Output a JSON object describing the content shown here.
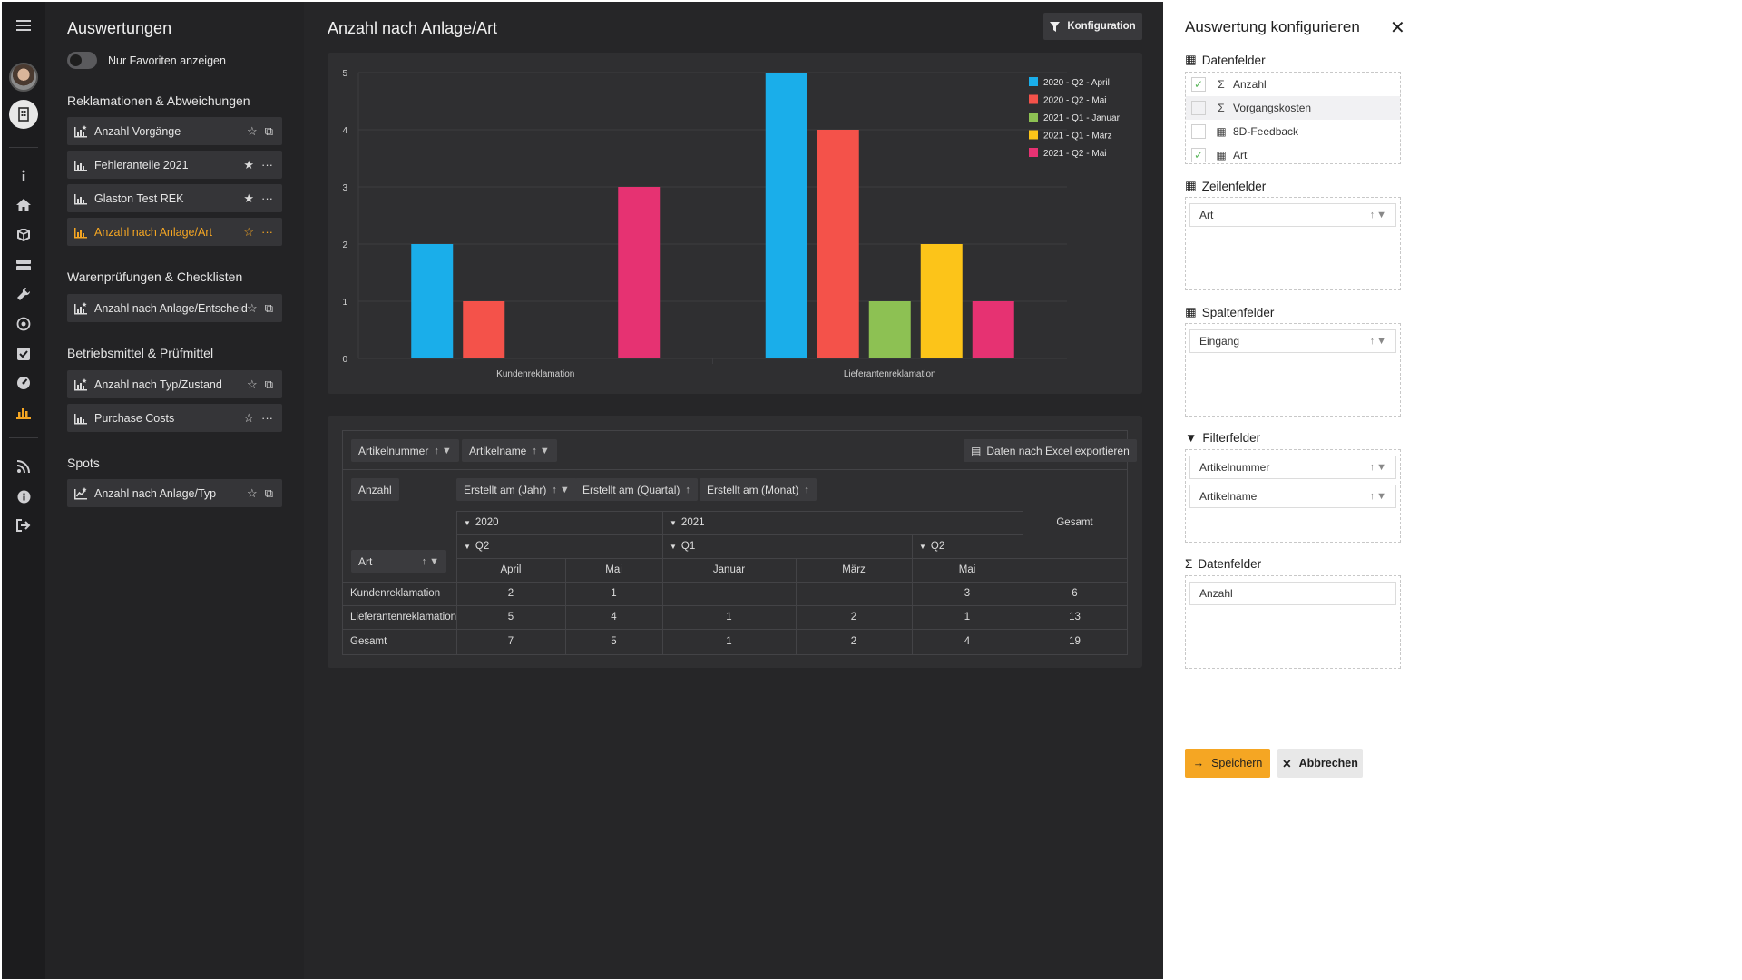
{
  "nav": {
    "title": "Auswertungen",
    "favorites_toggle_label": "Nur Favoriten anzeigen",
    "groups": [
      {
        "title": "Reklamationen & Abweichungen",
        "items": [
          {
            "label": "Anzahl Vorgänge",
            "star": "☆",
            "action": "copy"
          },
          {
            "label": "Fehleranteile 2021",
            "star": "★",
            "action": "more"
          },
          {
            "label": "Glaston Test REK",
            "star": "★",
            "action": "more"
          },
          {
            "label": "Anzahl nach Anlage/Art",
            "star": "☆",
            "action": "more"
          }
        ]
      },
      {
        "title": "Warenprüfungen & Checklisten",
        "items": [
          {
            "label": "Anzahl nach Anlage/Entscheid",
            "star": "☆",
            "action": "copy"
          }
        ]
      },
      {
        "title": "Betriebsmittel & Prüfmittel",
        "items": [
          {
            "label": "Anzahl nach Typ/Zustand",
            "star": "☆",
            "action": "copy"
          },
          {
            "label": "Purchase Costs",
            "star": "☆",
            "action": "more"
          }
        ]
      },
      {
        "title": "Spots",
        "items": [
          {
            "label": "Anzahl nach Anlage/Typ",
            "star": "☆",
            "action": "copy"
          }
        ]
      }
    ]
  },
  "main": {
    "title": "Anzahl nach Anlage/Art",
    "config_button": "Konfiguration"
  },
  "chart_data": {
    "type": "bar",
    "categories": [
      "Kundenreklamation",
      "Lieferantenreklamation"
    ],
    "series": [
      {
        "name": "2020 - Q2 - April",
        "color": "#1aaeea",
        "values": [
          2,
          5
        ]
      },
      {
        "name": "2020 - Q2 - Mai",
        "color": "#f4524a",
        "values": [
          1,
          4
        ]
      },
      {
        "name": "2021 - Q1 - Januar",
        "color": "#8dc153",
        "values": [
          null,
          1
        ]
      },
      {
        "name": "2021 - Q1 - März",
        "color": "#fcc419",
        "values": [
          null,
          2
        ]
      },
      {
        "name": "2021 - Q2 - Mai",
        "color": "#e63272",
        "values": [
          3,
          1
        ]
      }
    ],
    "yticks": [
      "0",
      "1",
      "2",
      "3",
      "4",
      "5"
    ],
    "ylim": [
      0,
      5
    ],
    "legend": "top-right",
    "grid": true
  },
  "pivot": {
    "filter_chips": [
      "Artikelnummer",
      "Artikelname"
    ],
    "export_label": "Daten nach Excel exportieren",
    "data_chip": "Anzahl",
    "column_chips": [
      "Erstellt am (Jahr)",
      "Erstellt am (Quartal)",
      "Erstellt am (Monat)"
    ],
    "row_chip": "Art",
    "years": [
      "2020",
      "2021"
    ],
    "quarters": [
      "Q2",
      "Q1",
      "Q2"
    ],
    "months": [
      "April",
      "Mai",
      "Januar",
      "März",
      "Mai"
    ],
    "total_label": "Gesamt",
    "rows": [
      {
        "label": "Kundenreklamation",
        "values": [
          "2",
          "1",
          "",
          "",
          "3"
        ],
        "total": "6"
      },
      {
        "label": "Lieferantenreklamation",
        "values": [
          "5",
          "4",
          "1",
          "2",
          "1"
        ],
        "total": "13"
      },
      {
        "label": "Gesamt",
        "values": [
          "7",
          "5",
          "1",
          "2",
          "4"
        ],
        "total": "19"
      }
    ]
  },
  "panel": {
    "title": "Auswertung konfigurieren",
    "datafields_title": "Datenfelder",
    "datafields": [
      {
        "label": "Anzahl",
        "checked": true,
        "symbol": "Σ"
      },
      {
        "label": "Vorgangskosten",
        "checked": false,
        "symbol": "Σ"
      },
      {
        "label": "8D-Feedback",
        "checked": false,
        "symbol": "▦"
      },
      {
        "label": "Art",
        "checked": true,
        "symbol": "▦"
      }
    ],
    "row_fields_title": "Zeilenfelder",
    "row_fields": [
      "Art"
    ],
    "column_fields_title": "Spaltenfelder",
    "column_fields": [
      "Eingang"
    ],
    "filter_fields_title": "Filterfelder",
    "filter_fields": [
      "Artikelnummer",
      "Artikelname"
    ],
    "value_fields_title": "Datenfelder",
    "value_fields": [
      "Anzahl"
    ],
    "save_label": "Speichern",
    "cancel_label": "Abbrechen"
  }
}
